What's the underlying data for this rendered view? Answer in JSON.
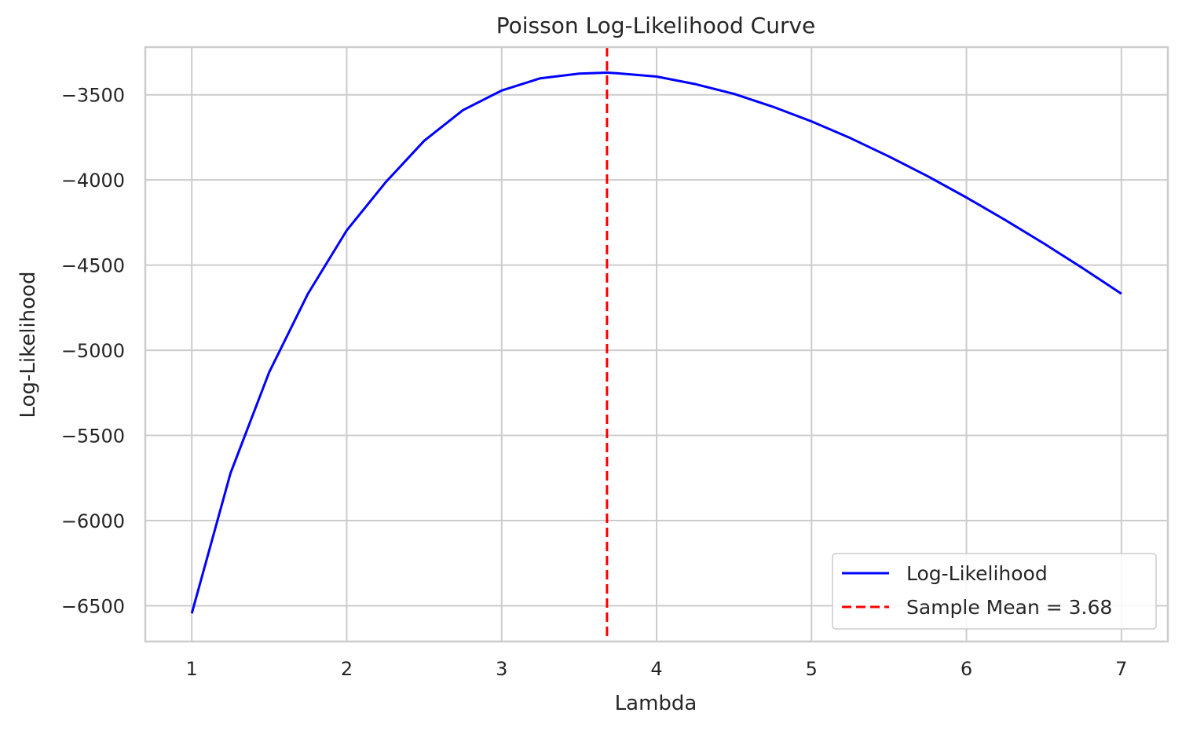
{
  "chart_data": {
    "type": "line",
    "title": "Poisson Log-Likelihood Curve",
    "xlabel": "Lambda",
    "ylabel": "Log-Likelihood",
    "xlim": [
      0.7,
      7.3
    ],
    "ylim": [
      -6710,
      -3220
    ],
    "xticks": [
      1,
      2,
      3,
      4,
      5,
      6,
      7
    ],
    "xtick_labels": [
      "1",
      "2",
      "3",
      "4",
      "5",
      "6",
      "7"
    ],
    "yticks": [
      -6500,
      -6000,
      -5500,
      -5000,
      -4500,
      -4000,
      -3500
    ],
    "ytick_labels": [
      "−6500",
      "−6000",
      "−5500",
      "−5000",
      "−4500",
      "−4000",
      "−3500"
    ],
    "grid": true,
    "legend_position": "lower-right",
    "series": [
      {
        "name": "Log-Likelihood",
        "color": "#0000ff",
        "style": "solid",
        "x": [
          1.0,
          1.25,
          1.5,
          1.75,
          2.0,
          2.25,
          2.5,
          2.75,
          3.0,
          3.25,
          3.5,
          3.68,
          3.75,
          4.0,
          4.25,
          4.5,
          4.75,
          5.0,
          5.25,
          5.5,
          5.75,
          6.0,
          6.25,
          6.5,
          6.75,
          7.0
        ],
        "y": [
          -6545,
          -5722,
          -5128,
          -4668,
          -4296,
          -4015,
          -3770,
          -3590,
          -3475,
          -3403,
          -3376,
          -3370,
          -3374,
          -3393,
          -3437,
          -3495,
          -3570,
          -3656,
          -3754,
          -3862,
          -3978,
          -4103,
          -4235,
          -4373,
          -4518,
          -4668
        ]
      }
    ],
    "vlines": [
      {
        "name": "Sample Mean = 3.68",
        "x": 3.68,
        "color": "#ff0000",
        "style": "dashed"
      }
    ]
  }
}
